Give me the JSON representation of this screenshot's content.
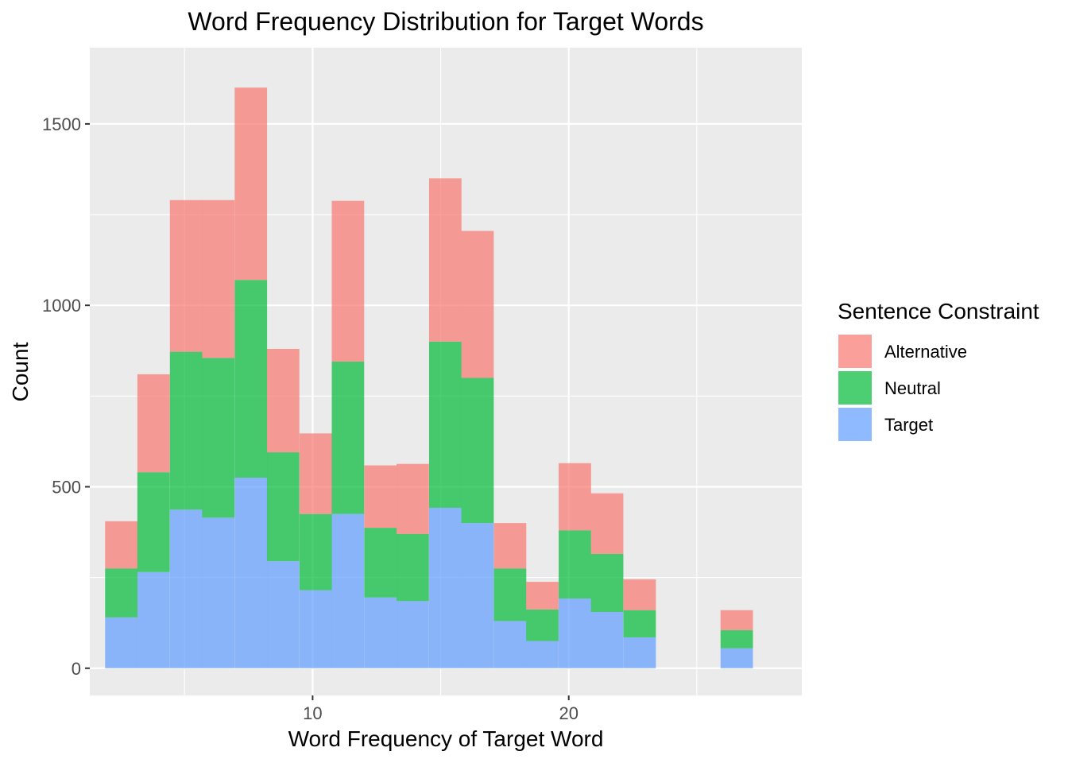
{
  "chart_data": {
    "type": "bar",
    "stacked": true,
    "histogram": true,
    "title": "Word Frequency Distribution for Target Words",
    "xlabel": "Word Frequency of Target Word",
    "ylabel": "Count",
    "xlim": [
      1.3,
      29.1
    ],
    "ylim": [
      -75,
      1710
    ],
    "x_ticks": [
      10,
      20
    ],
    "y_ticks": [
      0,
      500,
      1000,
      1500
    ],
    "x_minor_gridlines": [
      5,
      15,
      25
    ],
    "y_minor_gridlines": [
      250,
      750,
      1250
    ],
    "grid": true,
    "legend": {
      "title": "Sentence Constraint",
      "position": "right",
      "entries": [
        "Alternative",
        "Neutral",
        "Target"
      ]
    },
    "colors": {
      "Alternative": "#F8766D",
      "Neutral": "#00BA38",
      "Target": "#619CFF"
    },
    "bin_width": 1.265,
    "bins": [
      2.53,
      3.79,
      5.06,
      6.32,
      7.59,
      8.85,
      10.12,
      11.38,
      12.65,
      13.91,
      15.18,
      16.44,
      17.71,
      18.97,
      20.24,
      21.5,
      22.77,
      24.03,
      25.3,
      26.56
    ],
    "series": [
      {
        "name": "Target",
        "values": [
          140,
          265,
          437,
          415,
          525,
          295,
          215,
          425,
          195,
          185,
          442,
          400,
          130,
          75,
          192,
          155,
          85,
          0,
          0,
          55
        ]
      },
      {
        "name": "Neutral",
        "values": [
          135,
          275,
          435,
          440,
          545,
          300,
          210,
          420,
          192,
          185,
          458,
          400,
          145,
          87,
          188,
          160,
          75,
          0,
          0,
          50
        ]
      },
      {
        "name": "Alternative",
        "values": [
          130,
          270,
          418,
          435,
          530,
          285,
          222,
          443,
          172,
          193,
          450,
          405,
          125,
          76,
          185,
          167,
          85,
          0,
          0,
          55
        ]
      }
    ]
  }
}
